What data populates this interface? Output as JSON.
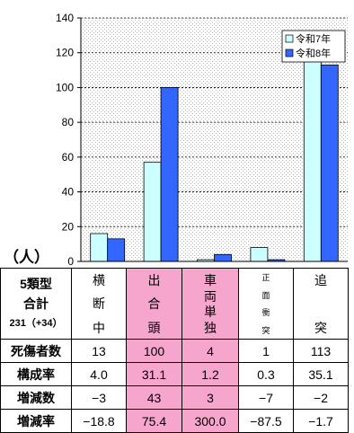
{
  "chart_data": {
    "type": "bar",
    "categories": [
      "横断中",
      "出合頭",
      "車両単独",
      "正面衝突",
      "追突"
    ],
    "series": [
      {
        "name": "令和7年",
        "values": [
          16,
          57,
          1,
          8,
          115
        ],
        "color": "#ccffff"
      },
      {
        "name": "令和8年",
        "values": [
          13,
          100,
          4,
          1,
          113
        ],
        "color": "#3366ff"
      }
    ],
    "ylim": [
      0,
      140
    ],
    "yticks": [
      "0",
      "20",
      "40",
      "60",
      "80",
      "100",
      "120",
      "140"
    ],
    "ylabel": "（人）",
    "grid": true,
    "legend_position": "top-right"
  },
  "table": {
    "title_main": "5類型",
    "title_sub1": "合計",
    "title_sub2": "231（+34）",
    "columns": [
      {
        "chars": [
          "横",
          "断",
          "中"
        ],
        "highlight": false,
        "small": false
      },
      {
        "chars": [
          "出",
          "合",
          "頭"
        ],
        "highlight": true,
        "small": false
      },
      {
        "chars": [
          "車",
          "両",
          "単",
          "独"
        ],
        "highlight": true,
        "small": false
      },
      {
        "chars": [
          "正",
          "面",
          "衝",
          "突"
        ],
        "highlight": false,
        "small": true
      },
      {
        "chars": [
          "追",
          "突"
        ],
        "highlight": false,
        "small": false
      }
    ],
    "rows": [
      {
        "label": "死傷者数",
        "values": [
          "13",
          "100",
          "4",
          "1",
          "113"
        ]
      },
      {
        "label": "構成率",
        "values": [
          "4.0",
          "31.1",
          "1.2",
          "0.3",
          "35.1"
        ]
      },
      {
        "label": "増減数",
        "values": [
          "−3",
          "43",
          "3",
          "−7",
          "−2"
        ]
      },
      {
        "label": "増減率",
        "values": [
          "−18.8",
          "75.4",
          "300.0",
          "−87.5",
          "−1.7"
        ]
      }
    ]
  }
}
